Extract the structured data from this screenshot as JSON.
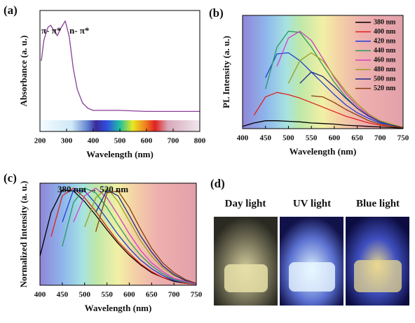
{
  "chart_data": [
    {
      "type": "line",
      "panel": "(a)",
      "xlabel": "Wavelength (nm)",
      "ylabel": "Absorbance (a. u.)",
      "annotations": [
        "π- π*",
        "n- π*"
      ],
      "x": [
        205,
        215,
        230,
        240,
        255,
        265,
        280,
        295,
        310,
        325,
        340,
        360,
        380,
        400,
        500,
        600,
        700,
        800
      ],
      "series": [
        {
          "color": "#8a3d9a",
          "values": [
            0.52,
            0.72,
            0.84,
            0.86,
            0.8,
            0.76,
            0.84,
            0.9,
            0.75,
            0.45,
            0.25,
            0.12,
            0.07,
            0.05,
            0.05,
            0.04,
            0.04,
            0.04
          ]
        }
      ],
      "xlim": [
        200,
        800
      ],
      "ylim": [
        -0.15,
        1
      ],
      "xticks": [
        200,
        300,
        400,
        500,
        600,
        700,
        800
      ]
    },
    {
      "type": "line",
      "panel": "(b)",
      "xlabel": "Wavelength (nm)",
      "ylabel": "PL Intensity (a. u.)",
      "x": [
        400,
        425,
        450,
        475,
        500,
        525,
        550,
        575,
        600,
        625,
        650,
        675,
        700,
        725,
        750
      ],
      "series": [
        {
          "name": "380 nm",
          "color": "#000000",
          "values": [
            0.02,
            0.05,
            0.07,
            0.07,
            0.065,
            0.06,
            0.05,
            0.045,
            0.04,
            0.03,
            0.025,
            0.02,
            0.015,
            0.01,
            0.005
          ]
        },
        {
          "name": "400 nm",
          "color": "#e0201b",
          "values": [
            null,
            0.12,
            0.28,
            0.32,
            0.3,
            0.27,
            0.23,
            0.19,
            0.15,
            0.11,
            0.08,
            0.05,
            0.03,
            0.02,
            0.01
          ]
        },
        {
          "name": "420 nm",
          "color": "#1d3fd8",
          "values": [
            null,
            null,
            0.45,
            0.66,
            0.67,
            0.6,
            0.5,
            0.4,
            0.3,
            0.21,
            0.14,
            0.09,
            0.05,
            0.03,
            0.01
          ]
        },
        {
          "name": "440 nm",
          "color": "#2a9a60",
          "values": [
            null,
            null,
            0.35,
            0.72,
            0.86,
            0.85,
            0.72,
            0.56,
            0.41,
            0.28,
            0.18,
            0.11,
            0.06,
            0.03,
            0.01
          ]
        },
        {
          "name": "460 nm",
          "color": "#d040c0",
          "values": [
            null,
            null,
            null,
            0.55,
            0.8,
            0.86,
            0.78,
            0.62,
            0.45,
            0.31,
            0.2,
            0.12,
            0.06,
            0.03,
            0.01
          ]
        },
        {
          "name": "480 nm",
          "color": "#9aa020",
          "values": [
            null,
            null,
            null,
            null,
            0.4,
            0.6,
            0.67,
            0.6,
            0.46,
            0.33,
            0.22,
            0.13,
            0.07,
            0.04,
            0.01
          ]
        },
        {
          "name": "500 nm",
          "color": "#1a2a8a",
          "values": [
            null,
            null,
            null,
            null,
            null,
            0.4,
            0.5,
            0.46,
            0.37,
            0.27,
            0.18,
            0.11,
            0.06,
            0.03,
            0.01
          ]
        },
        {
          "name": "520 nm",
          "color": "#8a3a10",
          "values": [
            null,
            null,
            null,
            null,
            null,
            null,
            0.29,
            0.28,
            0.23,
            0.17,
            0.12,
            0.07,
            0.04,
            0.02,
            0.01
          ]
        }
      ],
      "xlim": [
        400,
        750
      ],
      "ylim": [
        0,
        1
      ],
      "xticks": [
        400,
        450,
        500,
        550,
        600,
        650,
        700,
        750
      ]
    },
    {
      "type": "line",
      "panel": "(c)",
      "xlabel": "Wavelength (nm)",
      "ylabel": "Normalized Intensity (a. u.)",
      "annotation": "380 nm → 520 nm",
      "x": [
        400,
        425,
        450,
        475,
        500,
        525,
        550,
        575,
        600,
        625,
        650,
        675,
        700,
        725,
        750
      ],
      "series": [
        {
          "color": "#000000",
          "values": [
            0.3,
            0.75,
            0.98,
            0.97,
            0.86,
            0.72,
            0.57,
            0.43,
            0.31,
            0.21,
            0.13,
            0.08,
            0.04,
            0.02,
            0.01
          ]
        },
        {
          "color": "#e0201b",
          "values": [
            null,
            0.5,
            0.92,
            1,
            0.9,
            0.76,
            0.6,
            0.45,
            0.33,
            0.22,
            0.14,
            0.08,
            0.05,
            0.02,
            0.01
          ]
        },
        {
          "color": "#1d3fd8",
          "values": [
            null,
            null,
            0.65,
            0.98,
            0.97,
            0.84,
            0.68,
            0.52,
            0.38,
            0.26,
            0.17,
            0.1,
            0.05,
            0.03,
            0.01
          ]
        },
        {
          "color": "#2a9a60",
          "values": [
            null,
            null,
            0.4,
            0.85,
            1,
            0.95,
            0.8,
            0.62,
            0.45,
            0.31,
            0.2,
            0.12,
            0.06,
            0.03,
            0.01
          ]
        },
        {
          "color": "#d040c0",
          "values": [
            null,
            null,
            null,
            0.65,
            0.92,
            1,
            0.9,
            0.72,
            0.53,
            0.36,
            0.23,
            0.14,
            0.07,
            0.04,
            0.01
          ]
        },
        {
          "color": "#9aa020",
          "values": [
            null,
            null,
            null,
            null,
            0.6,
            0.9,
            1,
            0.86,
            0.66,
            0.46,
            0.3,
            0.18,
            0.1,
            0.05,
            0.02
          ]
        },
        {
          "color": "#1a2a8a",
          "values": [
            null,
            null,
            null,
            null,
            null,
            0.75,
            0.98,
            0.92,
            0.72,
            0.51,
            0.34,
            0.2,
            0.11,
            0.05,
            0.02
          ]
        },
        {
          "color": "#8a3a10",
          "values": [
            null,
            null,
            null,
            null,
            null,
            0.55,
            0.95,
            0.97,
            0.8,
            0.58,
            0.38,
            0.23,
            0.13,
            0.06,
            0.02
          ]
        }
      ],
      "xlim": [
        400,
        750
      ],
      "ylim": [
        0,
        1.05
      ],
      "xticks": [
        400,
        450,
        500,
        550,
        600,
        650,
        700,
        750
      ]
    }
  ],
  "photos": {
    "panel": "(d)",
    "labels": [
      "Day light",
      "UV light",
      "Blue light"
    ]
  }
}
